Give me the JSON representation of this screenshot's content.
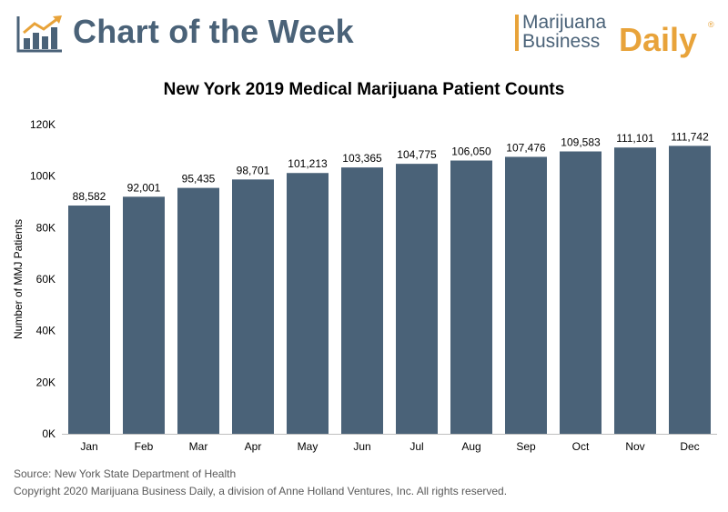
{
  "header": {
    "title": "Chart of the Week",
    "brand_line1": "Marijuana",
    "brand_line2": "Business",
    "brand_daily": "Daily",
    "brand_reg": "®",
    "accent_color": "#e8a33a",
    "text_color": "#4a6278"
  },
  "chart_data": {
    "type": "bar",
    "title": "New York 2019 Medical Marijuana Patient Counts",
    "xlabel": "",
    "ylabel": "Number of MMJ Patients",
    "categories": [
      "Jan",
      "Feb",
      "Mar",
      "Apr",
      "May",
      "Jun",
      "Jul",
      "Aug",
      "Sep",
      "Oct",
      "Nov",
      "Dec"
    ],
    "values": [
      88582,
      92001,
      95435,
      98701,
      101213,
      103365,
      104775,
      106050,
      107476,
      109583,
      111101,
      111742
    ],
    "data_labels": [
      "88,582",
      "92,001",
      "95,435",
      "98,701",
      "101,213",
      "103,365",
      "104,775",
      "106,050",
      "107,476",
      "109,583",
      "111,101",
      "111,742"
    ],
    "ylim": [
      0,
      120000
    ],
    "yticks": [
      0,
      20000,
      40000,
      60000,
      80000,
      100000,
      120000
    ],
    "ytick_labels": [
      "0K",
      "20K",
      "40K",
      "60K",
      "80K",
      "100K",
      "120K"
    ],
    "grid": false,
    "bar_color": "#4a6278"
  },
  "footer": {
    "source": "Source: New York State Department of Health",
    "copyright": "Copyright 2020 Marijuana Business Daily, a division of Anne Holland Ventures, Inc. All rights reserved."
  }
}
